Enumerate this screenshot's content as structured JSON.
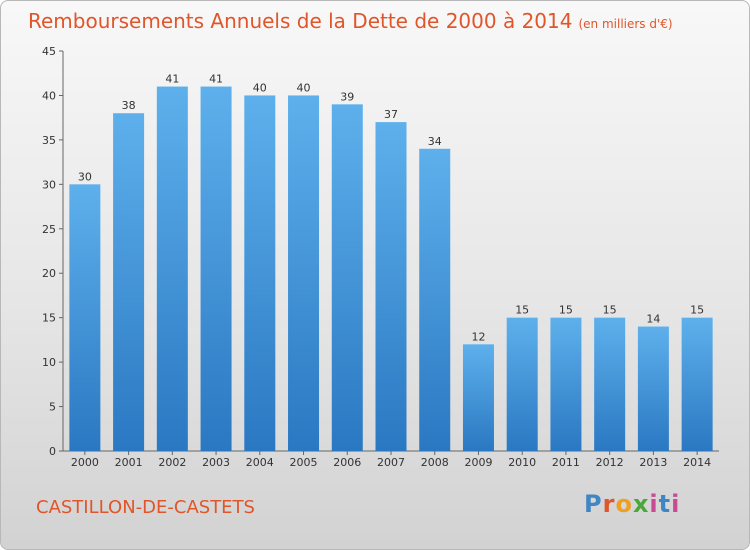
{
  "title": "Remboursements Annuels de la Dette de 2000 à 2014",
  "unit_note": "(en milliers d'€)",
  "commune": "CASTILLON-DE-CASTETS",
  "logo": "Proxiti",
  "colors": {
    "accent": "#e0552a",
    "bar_top": "#5eb0ec",
    "bar_bottom": "#2a78c2"
  },
  "chart_data": {
    "type": "bar",
    "title": "Remboursements Annuels de la Dette de 2000 à 2014",
    "ylabel": "en milliers d'€",
    "categories": [
      "2000",
      "2001",
      "2002",
      "2003",
      "2004",
      "2005",
      "2006",
      "2007",
      "2008",
      "2009",
      "2010",
      "2011",
      "2012",
      "2013",
      "2014"
    ],
    "values": [
      30,
      38,
      41,
      41,
      40,
      40,
      39,
      37,
      34,
      12,
      15,
      15,
      15,
      14,
      15
    ],
    "ylim": [
      0,
      45
    ],
    "yticks": [
      0,
      5,
      10,
      15,
      20,
      25,
      30,
      35,
      40,
      45
    ],
    "grid": false
  }
}
